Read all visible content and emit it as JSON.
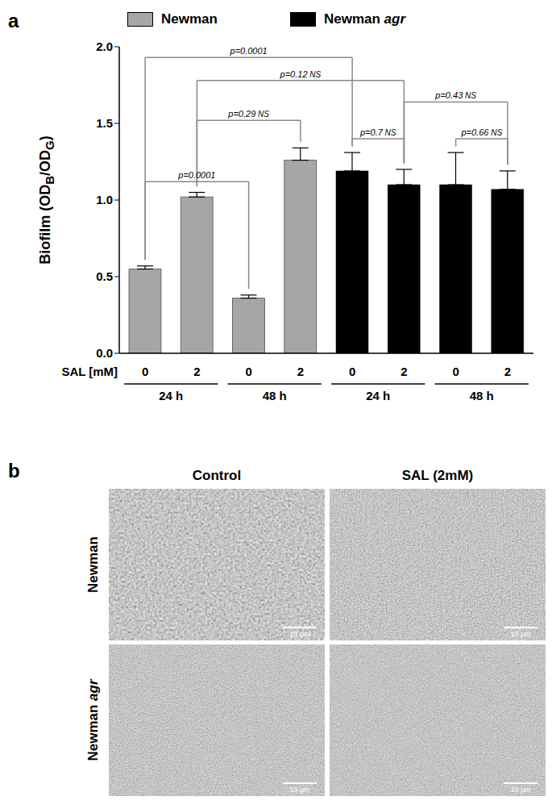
{
  "chart_data": {
    "type": "bar",
    "panel_label": "a",
    "x_label": "SAL [mM]",
    "y_label_parts": [
      {
        "text": "Biofilm (OD"
      },
      {
        "text": "B",
        "sub": true
      },
      {
        "text": "/OD"
      },
      {
        "text": "G",
        "sub": true
      },
      {
        "text": ")"
      }
    ],
    "categories": [
      "0",
      "2",
      "0",
      "2",
      "0",
      "2",
      "0",
      "2"
    ],
    "group_labels": [
      "24 h",
      "48 h",
      "24 h",
      "48 h"
    ],
    "series": [
      {
        "name": "Newman",
        "color": "#a6a6a6",
        "values": [
          0.55,
          1.02,
          0.36,
          1.26,
          null,
          null,
          null,
          null
        ],
        "errors": [
          0.02,
          0.03,
          0.02,
          0.08,
          null,
          null,
          null,
          null
        ]
      },
      {
        "name": "Newman agr",
        "color": "#000000",
        "values": [
          null,
          null,
          null,
          null,
          1.19,
          1.1,
          1.1,
          1.07
        ],
        "errors": [
          null,
          null,
          null,
          null,
          0.12,
          0.1,
          0.21,
          0.12
        ]
      }
    ],
    "ylim": [
      0,
      2
    ],
    "yticks": [
      {
        "value": 0,
        "label": "0.0"
      },
      {
        "value": 0.5,
        "label": "0.5"
      },
      {
        "value": 1,
        "label": "1.0"
      },
      {
        "value": 1.5,
        "label": "1.5"
      },
      {
        "value": 2,
        "label": "2.0"
      }
    ],
    "grid": false,
    "legend": "top",
    "comparisons": [
      {
        "bars": [
          0,
          4
        ],
        "label": "p=0.0001"
      },
      {
        "bars": [
          1,
          5
        ],
        "label": "p=0.12",
        "note": "NS"
      },
      {
        "bars": [
          5,
          7
        ],
        "label": "p=0.43",
        "note": "NS"
      },
      {
        "bars": [
          1,
          3
        ],
        "label": "p=0.29",
        "note": "NS"
      },
      {
        "bars": [
          4,
          5
        ],
        "label": "p=0.7",
        "note": "NS"
      },
      {
        "bars": [
          6,
          7
        ],
        "label": "p=0.66",
        "note": "NS"
      },
      {
        "bars": [
          0,
          2
        ],
        "label": "p=0.0001"
      }
    ]
  },
  "micrographs": {
    "panel_label": "b",
    "columns": [
      "Control",
      "SAL (2mM)"
    ],
    "rows": [
      "Newman",
      "Newman agr"
    ],
    "scale_bar": "10 μm"
  }
}
